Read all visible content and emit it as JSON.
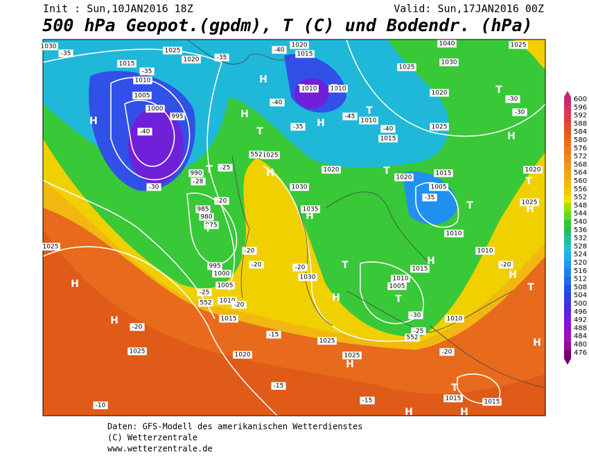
{
  "header": {
    "init": "Init : Sun,10JAN2016 18Z",
    "valid": "Valid: Sun,17JAN2016 00Z",
    "title": "500 hPa Geopot.(gpdm), T (C) und Bodendr. (hPa)"
  },
  "colorbar": {
    "labels": [
      600,
      596,
      592,
      588,
      584,
      580,
      576,
      572,
      568,
      564,
      560,
      556,
      552,
      548,
      544,
      540,
      536,
      532,
      528,
      524,
      520,
      516,
      512,
      508,
      504,
      500,
      496,
      492,
      488,
      484,
      480,
      476
    ],
    "colors": [
      "#c8286e",
      "#d83060",
      "#e03848",
      "#e84830",
      "#e85820",
      "#f06818",
      "#f07818",
      "#f08818",
      "#f09818",
      "#f0a810",
      "#f0b808",
      "#f0c800",
      "#f0e000",
      "#a0e000",
      "#60d820",
      "#30c830",
      "#20c060",
      "#20c0a0",
      "#20c0d0",
      "#20b0e8",
      "#2098f0",
      "#2080f0",
      "#2068f0",
      "#2050e8",
      "#3040e0",
      "#4030e0",
      "#6020e0",
      "#7818e0",
      "#9010d0",
      "#a010b0",
      "#901090",
      "#700070"
    ]
  },
  "map": {
    "labels": [
      "1030",
      "1025",
      "1020",
      "1015",
      "1010",
      "1005",
      "1000",
      "995",
      "990",
      "985",
      "980",
      "975",
      "1025",
      "1030",
      "1035",
      "1020",
      "1015",
      "1020",
      "1010",
      "1010",
      "1010",
      "1015",
      "1020",
      "1015",
      "1005",
      "1010",
      "1010",
      "1015",
      "1010",
      "1005",
      "1010",
      "1025",
      "1030",
      "1040",
      "1025",
      "1020",
      "1025",
      "1020",
      "1025",
      "1025",
      "995",
      "1000",
      "1005",
      "1010",
      "1015",
      "1025",
      "1020",
      "1025",
      "1025",
      "1030",
      "1015",
      "1015",
      "-35",
      "-35",
      "-40",
      "-30",
      "-28",
      "-25",
      "-20",
      "-20",
      "-20",
      "-25",
      "-20",
      "-20",
      "-15",
      "-15",
      "-15",
      "-10",
      "-20",
      "-40",
      "-35",
      "-40",
      "-35",
      "-45",
      "-40",
      "-35",
      "-30",
      "-30",
      "-20",
      "-30",
      "-20",
      "-25",
      "552",
      "552",
      "552",
      "H",
      "H",
      "H",
      "T",
      "T",
      "H",
      "T",
      "H",
      "H",
      "T",
      "T",
      "T",
      "H",
      "T",
      "T",
      "T",
      "H",
      "T",
      "H",
      "H",
      "T",
      "H",
      "T",
      "H",
      "H",
      "T",
      "H",
      "H",
      "T",
      "H",
      "H"
    ]
  },
  "footer": {
    "lines": [
      "Daten: GFS-Modell des amerikanischen Wetterdienstes",
      "(C) Wetterzentrale",
      "www.wetterzentrale.de"
    ]
  }
}
